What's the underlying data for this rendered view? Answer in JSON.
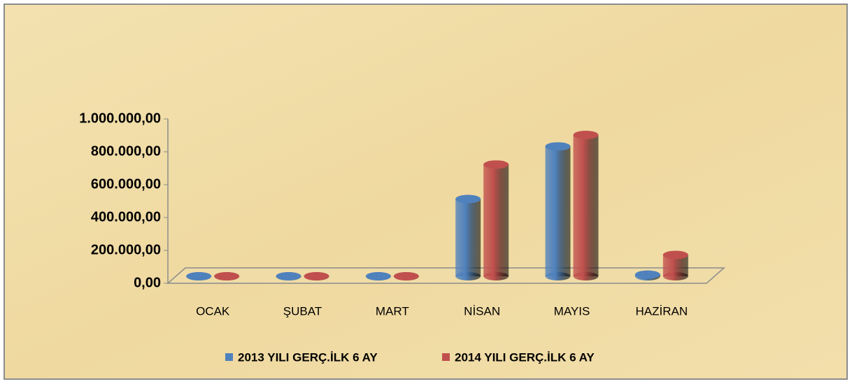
{
  "chart_data": {
    "type": "bar3d",
    "categories": [
      "OCAK",
      "ŞUBAT",
      "MART",
      "NİSAN",
      "MAYIS",
      "HAZİRAN"
    ],
    "series": [
      {
        "name": "2013 YILI GERÇ.İLK 6 AY",
        "color": "#4f81bd",
        "values": [
          0,
          0,
          0,
          470000,
          790000,
          10000
        ]
      },
      {
        "name": "2014 YILI GERÇ.İLK 6 AY",
        "color": "#c0504d",
        "values": [
          0,
          0,
          0,
          680000,
          860000,
          130000
        ]
      }
    ],
    "ylim": [
      0,
      1000000
    ],
    "yticks": [
      {
        "value": 0,
        "label": "0,00"
      },
      {
        "value": 200000,
        "label": "200.000,00"
      },
      {
        "value": 400000,
        "label": "400.000,00"
      },
      {
        "value": 600000,
        "label": "600.000,00"
      },
      {
        "value": 800000,
        "label": "800.000,00"
      },
      {
        "value": 1000000,
        "label": "1.000.000,00"
      }
    ],
    "legend": "bottom"
  }
}
